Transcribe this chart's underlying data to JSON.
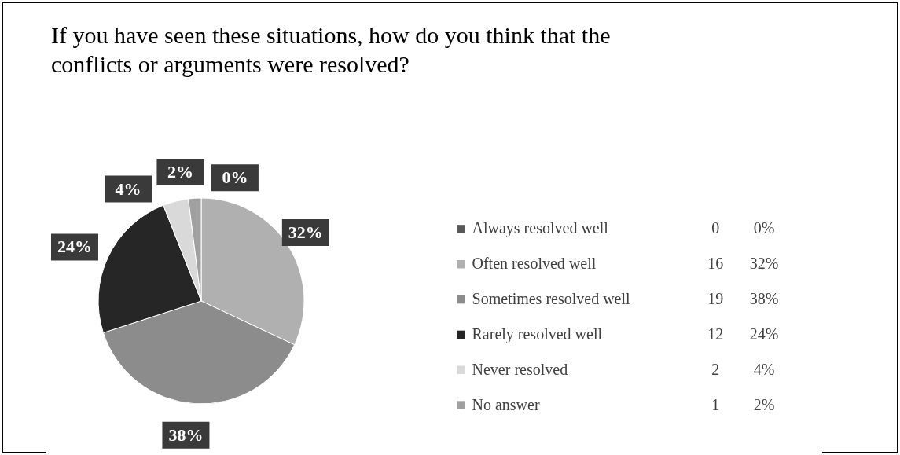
{
  "chart_data": {
    "type": "pie",
    "title": "If you have seen these situations, how do you think that the conflicts or arguments were resolved?",
    "categories": [
      "Always resolved well",
      "Often resolved well",
      "Sometimes resolved well",
      "Rarely resolved well",
      "Never resolved",
      "No answer"
    ],
    "values": [
      0,
      32,
      38,
      24,
      4,
      2
    ],
    "value_labels": [
      "0%",
      "32%",
      "38%",
      "24%",
      "4%",
      "2%"
    ],
    "annotations": [
      "0",
      "16",
      "19",
      "12",
      "2",
      "1"
    ],
    "colors": [
      "#595959",
      "#b0b0b0",
      "#8c8c8c",
      "#262626",
      "#d9d9d9",
      "#a0a0a0"
    ],
    "legend": "right"
  }
}
